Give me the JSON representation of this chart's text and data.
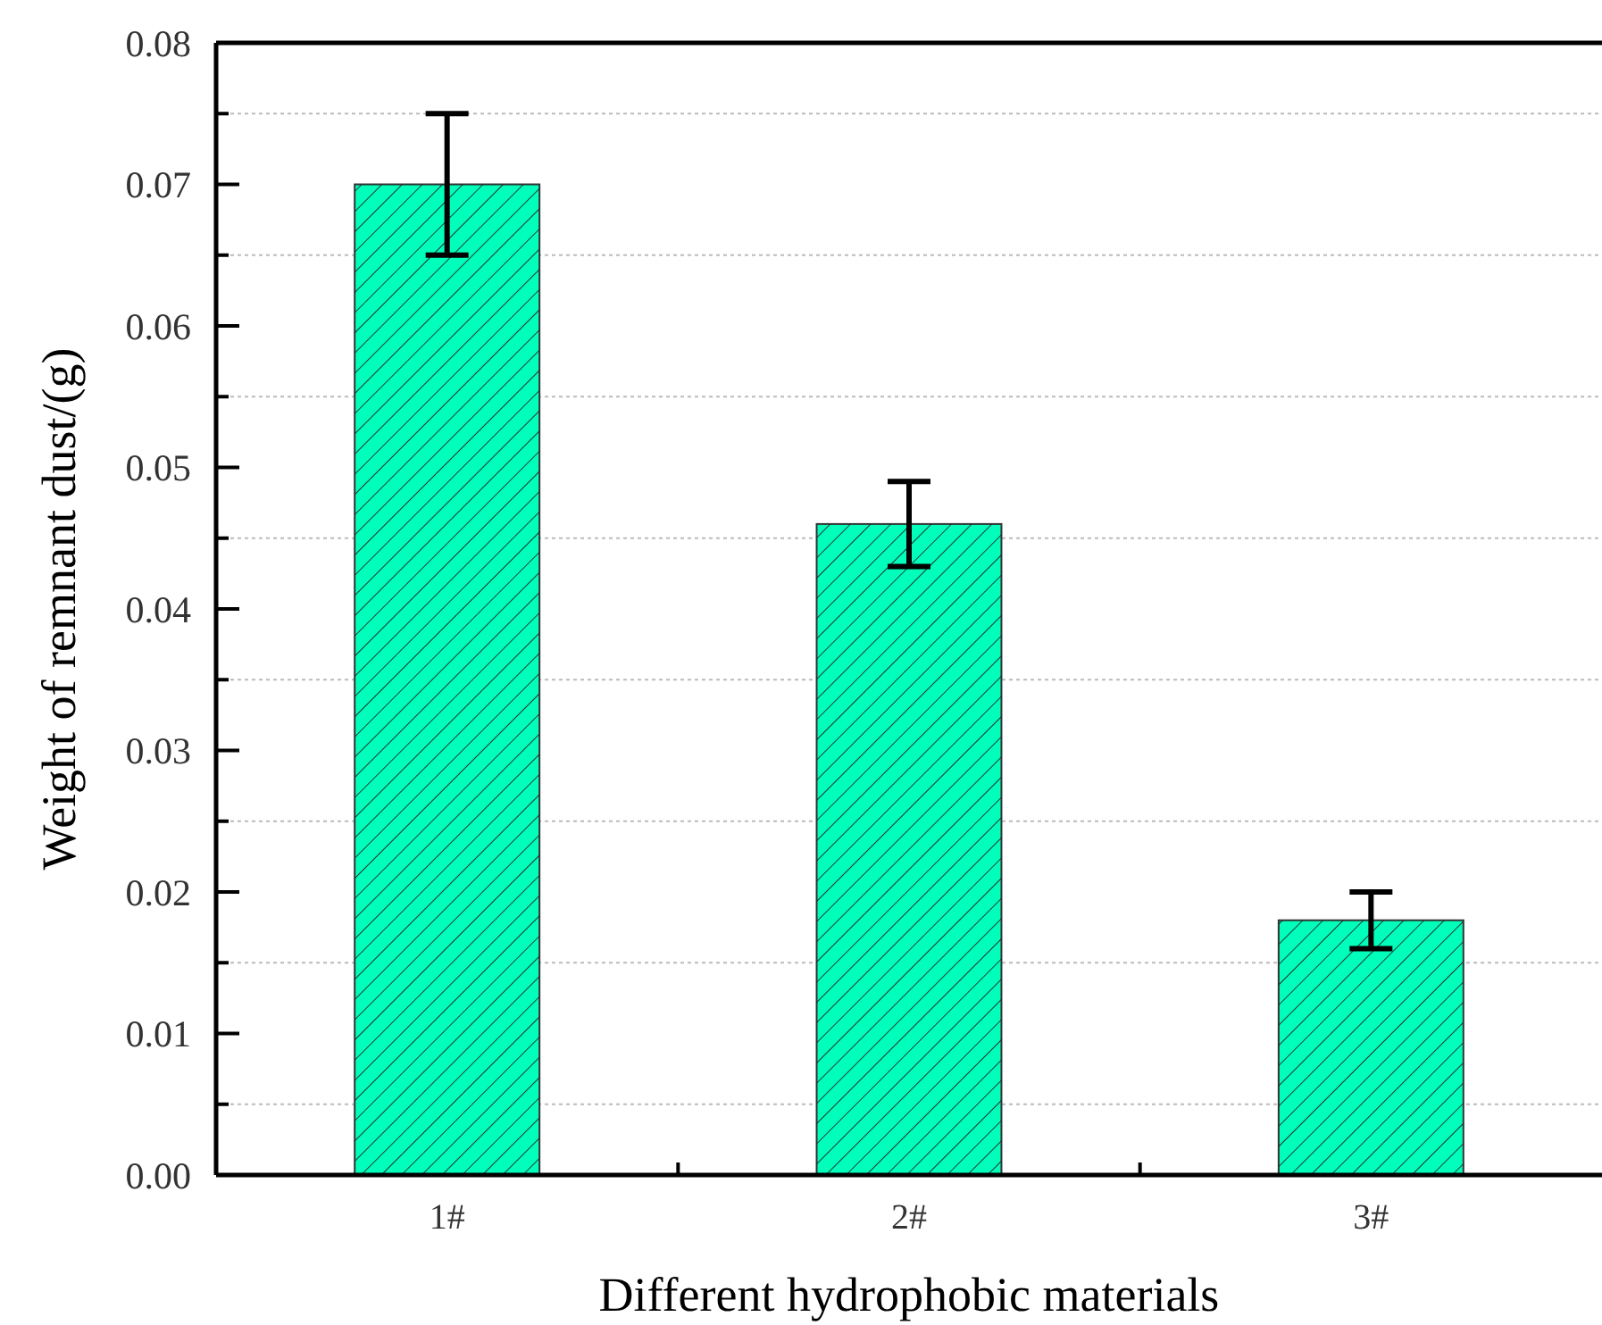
{
  "chart_data": {
    "type": "bar",
    "xlabel": "Different hydrophobic materials",
    "ylabel": "Weight of remnant dust/(g)",
    "categories": [
      "1#",
      "2#",
      "3#"
    ],
    "values": [
      0.07,
      0.046,
      0.018
    ],
    "errors": [
      0.005,
      0.003,
      0.002
    ],
    "color": "#00ffbb",
    "ylim": [
      0,
      0.08
    ],
    "yticks": [
      {
        "value": 0,
        "label": "0.00"
      },
      {
        "value": 0.005,
        "label": null
      },
      {
        "value": 0.01,
        "label": "0.01"
      },
      {
        "value": 0.015,
        "label": null
      },
      {
        "value": 0.02,
        "label": "0.02"
      },
      {
        "value": 0.025,
        "label": null
      },
      {
        "value": 0.03,
        "label": "0.03"
      },
      {
        "value": 0.035,
        "label": null
      },
      {
        "value": 0.04,
        "label": "0.04"
      },
      {
        "value": 0.045,
        "label": null
      },
      {
        "value": 0.05,
        "label": "0.05"
      },
      {
        "value": 0.055,
        "label": null
      },
      {
        "value": 0.06,
        "label": "0.06"
      },
      {
        "value": 0.065,
        "label": null
      },
      {
        "value": 0.07,
        "label": "0.07"
      },
      {
        "value": 0.075,
        "label": null
      },
      {
        "value": 0.08,
        "label": "0.08"
      }
    ],
    "grid": "y"
  }
}
